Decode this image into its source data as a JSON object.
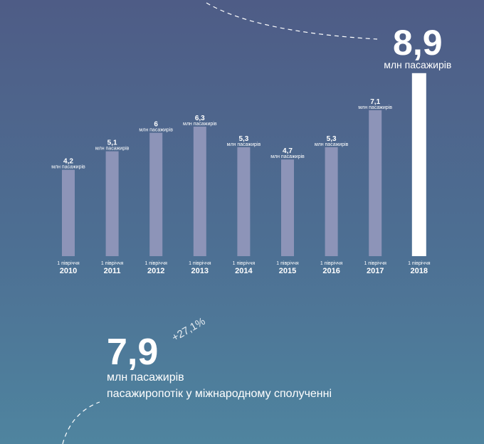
{
  "chart_data": {
    "type": "bar",
    "categories": [
      "2010",
      "2011",
      "2012",
      "2013",
      "2014",
      "2015",
      "2016",
      "2017",
      "2018"
    ],
    "period_label": "1 півріччя",
    "values": [
      4.2,
      5.1,
      6,
      6.3,
      5.3,
      4.7,
      5.3,
      7.1,
      8.9
    ],
    "value_labels": [
      "4,2",
      "5,1",
      "6",
      "6,3",
      "5,3",
      "4,7",
      "5,3",
      "7,1",
      "8,9"
    ],
    "unit": "млн пасажирів",
    "color": "#8d94b8",
    "highlight_color": "#ffffff",
    "annotation": {
      "value_label": "7,9",
      "change": "+27,1%",
      "unit": "млн пасажирів",
      "caption": "пасажиропотік у міжнародному сполученні"
    }
  }
}
